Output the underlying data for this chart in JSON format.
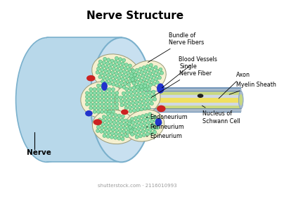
{
  "title": "Nerve Structure",
  "title_fontsize": 11,
  "watermark": "shutterstock.com · 2116010993",
  "labels": {
    "bundle": "Bundle of\nNerve Fibers",
    "blood_vessels": "Blood Vessels",
    "single_fiber": "Single\nNerve Fiber",
    "axon": "Axon",
    "myelin": "Myelin Sheath",
    "nucleus": "Nucleus of\nSchwann Cell",
    "endoneurium": "Endoneurium",
    "perineurium": "Perineurium",
    "epineurium": "Epineurium",
    "nerve": "Nerve"
  },
  "colors": {
    "bg": "#ffffff",
    "outer_cylinder": "#b8d8ea",
    "outer_cylinder_dark": "#7ab0cc",
    "epineurium_fill": "#c8e0f0",
    "fascicle_fill": "#f5f0d0",
    "fascicle_border": "#999977",
    "axon_fill": "#88ddaa",
    "axon_border": "#44aa66",
    "blood_red": "#cc2222",
    "blood_blue": "#2233cc",
    "tube_gray": "#aabbcc",
    "myelin_green": "#c8d880",
    "axon_yellow": "#f0e060",
    "nucleus_dark": "#222222",
    "label_color": "#111111"
  }
}
